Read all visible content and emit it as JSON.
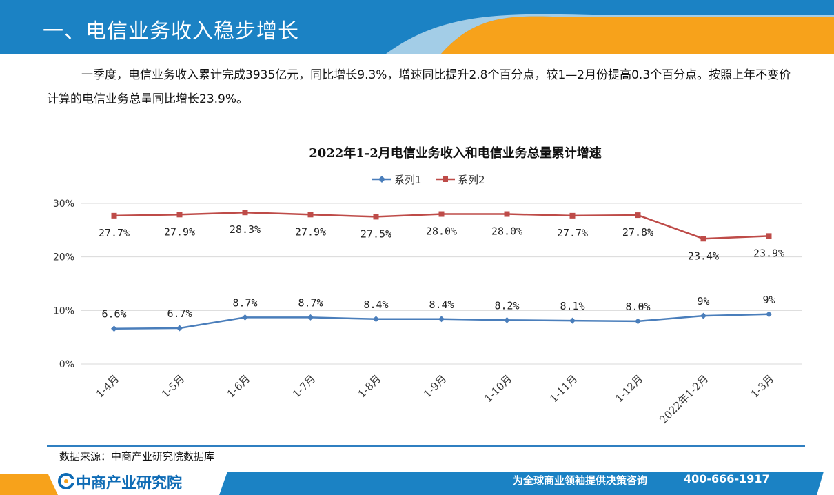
{
  "header": {
    "title": "一、电信业务收入稳步增长"
  },
  "intro": {
    "text": "一季度，电信业务收入累计完成3935亿元，同比增长9.3%，增速同比提升2.8个百分点，较1—2月份提高0.3个百分点。按照上年不变价计算的电信业务总量同比增长23.9%。"
  },
  "chart_data": {
    "type": "line",
    "title": "2022年1-2月电信业务收入和电信业务总量累计增速",
    "categories": [
      "1-4月",
      "1-5月",
      "1-6月",
      "1-7月",
      "1-8月",
      "1-9月",
      "1-10月",
      "1-11月",
      "1-12月",
      "2022年1-2月",
      "1-3月"
    ],
    "y_ticks": [
      "0%",
      "10%",
      "20%",
      "30%"
    ],
    "ylim": [
      0,
      30
    ],
    "grid": true,
    "legend_position": "top",
    "series": [
      {
        "name": "系列1",
        "color": "#4a7ebb",
        "values": [
          6.6,
          6.7,
          8.7,
          8.7,
          8.4,
          8.4,
          8.2,
          8.1,
          8.0,
          9.0,
          9.3
        ],
        "labels": [
          "6.6%",
          "6.7%",
          "8.7%",
          "8.7%",
          "8.4%",
          "8.4%",
          "8.2%",
          "8.1%",
          "8.0%",
          "9%",
          "9%"
        ]
      },
      {
        "name": "系列2",
        "color": "#be4b48",
        "values": [
          27.7,
          27.9,
          28.3,
          27.9,
          27.5,
          28.0,
          28.0,
          27.7,
          27.8,
          23.4,
          23.9
        ],
        "labels": [
          "27.7%",
          "27.9%",
          "28.3%",
          "27.9%",
          "27.5%",
          "28.0%",
          "28.0%",
          "27.7%",
          "27.8%",
          "23.4%",
          "23.9%"
        ]
      }
    ]
  },
  "source": {
    "text": "数据来源：中商产业研究院数据库"
  },
  "footer": {
    "brand": "中商产业研究院",
    "slogan": "为全球商业领袖提供决策咨询",
    "phone": "400-666-1917"
  },
  "colors": {
    "header_blue": "#1b82c4",
    "accent_orange": "#f7a21b",
    "brand_blue": "#0e6bb5"
  }
}
